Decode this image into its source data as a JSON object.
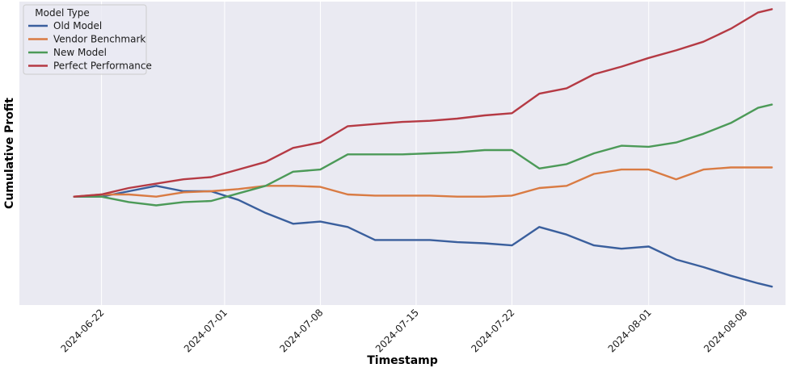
{
  "chart_data": {
    "type": "line",
    "title": "",
    "xlabel": "Timestamp",
    "ylabel": "Cumulative Profit",
    "x_ticks": [
      "2024-06-22",
      "2024-07-01",
      "2024-07-08",
      "2024-07-15",
      "2024-07-22",
      "2024-08-01",
      "2024-08-08"
    ],
    "x": [
      "2024-06-20",
      "2024-06-22",
      "2024-06-24",
      "2024-06-26",
      "2024-06-28",
      "2024-06-30",
      "2024-07-02",
      "2024-07-04",
      "2024-07-06",
      "2024-07-08",
      "2024-07-10",
      "2024-07-12",
      "2024-07-14",
      "2024-07-16",
      "2024-07-18",
      "2024-07-20",
      "2024-07-22",
      "2024-07-24",
      "2024-07-26",
      "2024-07-28",
      "2024-07-30",
      "2024-08-01",
      "2024-08-03",
      "2024-08-05",
      "2024-08-07",
      "2024-08-09",
      "2024-08-10"
    ],
    "xlim": [
      "2024-06-16",
      "2024-08-11"
    ],
    "ylim": [
      -10.0,
      18.0
    ],
    "y_ticks_visible": false,
    "grid": true,
    "legend": {
      "title": "Model Type",
      "position": "top-left"
    },
    "series": [
      {
        "name": "Old Model",
        "color": "#3a5f9d",
        "values": [
          0.0,
          0.0,
          0.5,
          1.0,
          0.5,
          0.5,
          -0.3,
          -1.5,
          -2.5,
          -2.3,
          -2.8,
          -4.0,
          -4.0,
          -4.0,
          -4.2,
          -4.3,
          -4.5,
          -2.8,
          -3.5,
          -4.5,
          -4.8,
          -4.6,
          -5.8,
          -6.5,
          -7.3,
          -8.0,
          -8.3
        ]
      },
      {
        "name": "Vendor Benchmark",
        "color": "#d97b43",
        "values": [
          0.0,
          0.2,
          0.2,
          0.0,
          0.4,
          0.5,
          0.7,
          1.0,
          1.0,
          0.9,
          0.2,
          0.1,
          0.1,
          0.1,
          0.0,
          0.0,
          0.1,
          0.8,
          1.0,
          2.1,
          2.5,
          2.5,
          1.6,
          2.5,
          2.7,
          2.7,
          2.7
        ]
      },
      {
        "name": "New Model",
        "color": "#4c9a58",
        "values": [
          0.0,
          0.0,
          -0.5,
          -0.8,
          -0.5,
          -0.4,
          0.3,
          1.0,
          2.3,
          2.5,
          3.9,
          3.9,
          3.9,
          4.0,
          4.1,
          4.3,
          4.3,
          2.6,
          3.0,
          4.0,
          4.7,
          4.6,
          5.0,
          5.8,
          6.8,
          8.2,
          8.5
        ]
      },
      {
        "name": "Perfect Performance",
        "color": "#b53a44",
        "values": [
          0.0,
          0.2,
          0.8,
          1.2,
          1.6,
          1.8,
          2.5,
          3.2,
          4.5,
          5.0,
          6.5,
          6.7,
          6.9,
          7.0,
          7.2,
          7.5,
          7.7,
          9.5,
          10.0,
          11.3,
          12.0,
          12.8,
          13.5,
          14.3,
          15.5,
          17.0,
          17.3
        ]
      }
    ]
  }
}
